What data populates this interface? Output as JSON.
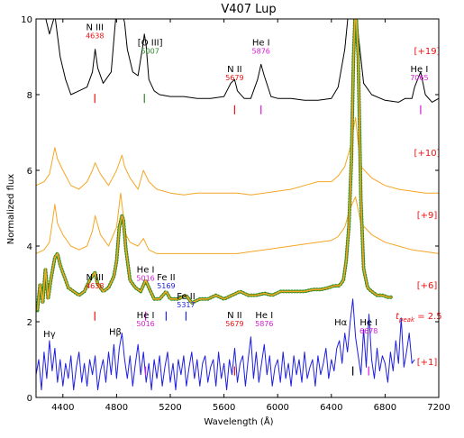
{
  "chart_data": {
    "type": "line",
    "title": "V407 Lup",
    "xlabel": "Wavelength (Å)",
    "ylabel": "Normalized flux",
    "xlim": [
      4200,
      7200
    ],
    "ylim": [
      0,
      10
    ],
    "xticks": [
      4400,
      4800,
      5200,
      5600,
      6000,
      6400,
      6800,
      7200
    ],
    "yticks": [
      0,
      2,
      4,
      6,
      8,
      10
    ],
    "grid": false,
    "legend": "none",
    "colors": {
      "black": "#000000",
      "orange": "#f5a623",
      "green": "#2e8b22",
      "blue": "#1f1fdf",
      "red": "#ee1111",
      "magenta": "#d81ad8",
      "darkgreen": "#2a8a2a"
    },
    "series": [
      {
        "label": "[+19]",
        "label_color": "red",
        "color": "black",
        "x": [
          4200,
          4260,
          4300,
          4340,
          4380,
          4420,
          4460,
          4520,
          4580,
          4620,
          4640,
          4660,
          4700,
          4760,
          4800,
          4820,
          4840,
          4860,
          4880,
          4920,
          4960,
          5000,
          5007,
          5020,
          5040,
          5080,
          5120,
          5200,
          5300,
          5400,
          5500,
          5600,
          5650,
          5679,
          5700,
          5750,
          5800,
          5850,
          5876,
          5900,
          5950,
          6000,
          6100,
          6200,
          6300,
          6400,
          6450,
          6500,
          6530,
          6560,
          6580,
          6600,
          6640,
          6700,
          6800,
          6900,
          6950,
          7000,
          7020,
          7065,
          7100,
          7150,
          7200
        ],
        "y": [
          10.5,
          10.2,
          9.6,
          10.1,
          9.0,
          8.4,
          8.0,
          8.1,
          8.2,
          8.6,
          9.2,
          8.7,
          8.3,
          8.6,
          10.3,
          10.6,
          10.2,
          9.9,
          9.2,
          8.6,
          8.5,
          9.4,
          9.6,
          9.3,
          8.4,
          8.1,
          8.0,
          7.95,
          7.95,
          7.9,
          7.9,
          7.95,
          8.3,
          8.4,
          8.1,
          7.9,
          7.9,
          8.4,
          8.8,
          8.5,
          7.95,
          7.9,
          7.9,
          7.85,
          7.85,
          7.9,
          8.2,
          9.2,
          10.3,
          10.8,
          10.5,
          9.6,
          8.3,
          8.0,
          7.85,
          7.8,
          7.9,
          7.9,
          8.2,
          8.6,
          8.0,
          7.8,
          7.9
        ]
      },
      {
        "label": "[+10]",
        "label_color": "red",
        "color": "orange",
        "x": [
          4200,
          4260,
          4300,
          4340,
          4360,
          4400,
          4460,
          4520,
          4580,
          4620,
          4640,
          4680,
          4740,
          4800,
          4840,
          4860,
          4900,
          4960,
          5000,
          5040,
          5100,
          5200,
          5300,
          5400,
          5500,
          5600,
          5700,
          5800,
          5900,
          6000,
          6100,
          6200,
          6300,
          6400,
          6450,
          6500,
          6540,
          6580,
          6600,
          6620,
          6700,
          6800,
          6900,
          7000,
          7100,
          7200
        ],
        "y": [
          5.6,
          5.7,
          5.9,
          6.6,
          6.3,
          6.0,
          5.6,
          5.5,
          5.7,
          6.0,
          6.2,
          5.9,
          5.6,
          6.0,
          6.4,
          6.1,
          5.8,
          5.5,
          6.0,
          5.7,
          5.5,
          5.4,
          5.35,
          5.4,
          5.4,
          5.4,
          5.4,
          5.35,
          5.4,
          5.45,
          5.5,
          5.6,
          5.7,
          5.7,
          5.85,
          6.1,
          6.6,
          7.4,
          6.7,
          6.1,
          5.8,
          5.6,
          5.5,
          5.45,
          5.4,
          5.4
        ]
      },
      {
        "label": "[+9]",
        "label_color": "red",
        "color": "orange",
        "x": [
          4200,
          4260,
          4300,
          4340,
          4360,
          4400,
          4460,
          4520,
          4580,
          4620,
          4640,
          4680,
          4740,
          4800,
          4830,
          4850,
          4870,
          4900,
          4960,
          5000,
          5040,
          5100,
          5200,
          5300,
          5400,
          5500,
          5600,
          5700,
          5800,
          5900,
          6000,
          6100,
          6200,
          6300,
          6400,
          6450,
          6500,
          6540,
          6580,
          6620,
          6700,
          6800,
          6900,
          7000,
          7100,
          7200
        ],
        "y": [
          3.8,
          3.9,
          4.1,
          5.1,
          4.6,
          4.3,
          4.0,
          3.9,
          4.0,
          4.4,
          4.8,
          4.3,
          4.0,
          4.5,
          5.4,
          4.8,
          4.3,
          4.1,
          4.0,
          4.2,
          3.9,
          3.8,
          3.8,
          3.8,
          3.8,
          3.8,
          3.8,
          3.8,
          3.85,
          3.9,
          3.95,
          4.0,
          4.05,
          4.1,
          4.15,
          4.25,
          4.5,
          5.0,
          5.3,
          4.6,
          4.3,
          4.1,
          4.0,
          3.9,
          3.85,
          3.8
        ]
      },
      {
        "label": "[+6]",
        "label_color": "red",
        "color": "orange",
        "marker_color": "green",
        "x": [
          4210,
          4230,
          4250,
          4270,
          4290,
          4310,
          4320,
          4340,
          4360,
          4380,
          4400,
          4440,
          4480,
          4520,
          4560,
          4600,
          4638,
          4660,
          4700,
          4740,
          4780,
          4800,
          4820,
          4840,
          4850,
          4870,
          4900,
          4940,
          4980,
          5016,
          5040,
          5080,
          5120,
          5169,
          5200,
          5260,
          5317,
          5360,
          5420,
          5480,
          5540,
          5600,
          5660,
          5720,
          5780,
          5840,
          5900,
          5960,
          6020,
          6080,
          6140,
          6200,
          6260,
          6320,
          6380,
          6420,
          6460,
          6490,
          6510,
          6530,
          6550,
          6565,
          6580,
          6600,
          6620,
          6640,
          6670,
          6700,
          6740,
          6780,
          6820,
          6850
        ],
        "y": [
          2.3,
          3.0,
          2.5,
          3.4,
          2.6,
          3.1,
          3.3,
          3.7,
          3.8,
          3.5,
          3.3,
          2.9,
          2.8,
          2.7,
          2.8,
          3.1,
          3.3,
          3.0,
          2.8,
          2.9,
          3.2,
          3.6,
          4.5,
          4.8,
          4.7,
          3.9,
          3.1,
          2.9,
          2.8,
          3.1,
          2.9,
          2.6,
          2.6,
          2.8,
          2.6,
          2.6,
          2.7,
          2.5,
          2.6,
          2.6,
          2.7,
          2.6,
          2.7,
          2.8,
          2.7,
          2.7,
          2.75,
          2.7,
          2.8,
          2.8,
          2.8,
          2.8,
          2.85,
          2.85,
          2.9,
          2.95,
          2.95,
          3.1,
          3.6,
          4.5,
          6.3,
          9.0,
          10.4,
          9.0,
          5.2,
          3.4,
          2.9,
          2.8,
          2.7,
          2.7,
          2.65,
          2.65
        ]
      },
      {
        "label": "[+1]",
        "label_color": "red",
        "color": "blue",
        "x": [
          4200,
          4220,
          4240,
          4260,
          4280,
          4300,
          4320,
          4340,
          4360,
          4380,
          4400,
          4420,
          4440,
          4460,
          4480,
          4500,
          4520,
          4540,
          4560,
          4580,
          4600,
          4620,
          4640,
          4660,
          4680,
          4700,
          4720,
          4740,
          4760,
          4780,
          4800,
          4820,
          4840,
          4860,
          4880,
          4900,
          4920,
          4940,
          4960,
          4980,
          5000,
          5020,
          5040,
          5060,
          5080,
          5100,
          5120,
          5140,
          5160,
          5180,
          5200,
          5220,
          5240,
          5260,
          5280,
          5300,
          5320,
          5340,
          5360,
          5380,
          5400,
          5420,
          5440,
          5460,
          5480,
          5500,
          5520,
          5540,
          5560,
          5580,
          5600,
          5620,
          5640,
          5660,
          5680,
          5700,
          5720,
          5740,
          5760,
          5780,
          5800,
          5820,
          5840,
          5860,
          5880,
          5900,
          5920,
          5940,
          5960,
          5980,
          6000,
          6020,
          6040,
          6060,
          6080,
          6100,
          6120,
          6140,
          6160,
          6180,
          6200,
          6220,
          6240,
          6260,
          6280,
          6300,
          6320,
          6340,
          6360,
          6380,
          6400,
          6420,
          6440,
          6460,
          6480,
          6500,
          6520,
          6540,
          6560,
          6580,
          6600,
          6620,
          6640,
          6660,
          6680,
          6700,
          6720,
          6740,
          6760,
          6780,
          6800,
          6820,
          6840,
          6860,
          6880,
          6900,
          6920,
          6940,
          6960,
          6980,
          7000,
          7020
        ],
        "y": [
          0.6,
          1.0,
          0.2,
          1.2,
          0.5,
          1.5,
          0.7,
          1.3,
          0.4,
          1.0,
          0.3,
          0.9,
          0.5,
          1.1,
          0.2,
          0.8,
          1.2,
          0.4,
          0.9,
          0.3,
          1.0,
          0.6,
          1.1,
          0.2,
          0.7,
          1.0,
          0.4,
          1.2,
          0.6,
          1.4,
          0.5,
          1.3,
          1.7,
          1.0,
          0.5,
          1.1,
          0.3,
          0.9,
          1.4,
          0.6,
          1.2,
          0.4,
          0.9,
          0.2,
          1.0,
          0.5,
          1.1,
          0.3,
          0.8,
          1.2,
          0.4,
          0.9,
          0.2,
          1.0,
          0.6,
          1.1,
          0.3,
          0.8,
          1.2,
          0.5,
          1.0,
          0.3,
          0.9,
          1.1,
          0.4,
          0.8,
          1.0,
          0.3,
          1.2,
          0.5,
          0.9,
          0.2,
          1.0,
          0.6,
          1.3,
          0.4,
          0.9,
          1.1,
          0.3,
          1.0,
          1.6,
          0.5,
          1.2,
          0.4,
          0.9,
          1.4,
          0.6,
          1.1,
          0.3,
          0.8,
          1.0,
          0.4,
          1.2,
          0.5,
          0.9,
          0.3,
          1.1,
          0.6,
          1.0,
          0.4,
          1.2,
          0.5,
          0.8,
          1.0,
          0.3,
          1.1,
          0.6,
          0.9,
          1.3,
          0.5,
          1.0,
          0.7,
          1.3,
          1.5,
          0.9,
          1.7,
          1.2,
          2.0,
          2.6,
          1.6,
          1.1,
          0.6,
          1.8,
          0.8,
          2.2,
          1.0,
          0.5,
          1.3,
          0.7,
          1.1,
          0.9,
          0.4,
          1.2,
          0.7,
          1.5,
          0.9,
          2.1,
          0.8,
          1.2,
          1.7,
          0.9,
          1.0
        ]
      }
    ],
    "annotations": [
      {
        "text": "N III",
        "sub": "4638",
        "sub_color": "red",
        "x": 4638,
        "y": 9.7
      },
      {
        "text": "[O III]",
        "sub": "5007",
        "sub_color": "darkgreen",
        "x": 5050,
        "y": 9.3
      },
      {
        "text": "N II",
        "sub": "5679",
        "sub_color": "red",
        "x": 5679,
        "y": 8.6
      },
      {
        "text": "He I",
        "sub": "5876",
        "sub_color": "magenta",
        "x": 5876,
        "y": 9.3
      },
      {
        "text": "He I",
        "sub": "7065",
        "sub_color": "magenta",
        "x": 7055,
        "y": 8.6
      },
      {
        "text": "N III",
        "sub": "4638",
        "sub_color": "red",
        "x": 4638,
        "y": 3.1
      },
      {
        "text": "He I",
        "sub": "5016",
        "sub_color": "magenta",
        "x": 5016,
        "y": 3.3
      },
      {
        "text": "Fe II",
        "sub": "5169",
        "sub_color": "blue",
        "x": 5169,
        "y": 3.1
      },
      {
        "text": "Fe II",
        "sub": "5317",
        "sub_color": "blue",
        "x": 5317,
        "y": 2.6
      },
      {
        "text": "He I",
        "sub": "5016",
        "sub_color": "magenta",
        "x": 5016,
        "y": 2.1
      },
      {
        "text": "N II",
        "sub": "5679",
        "sub_color": "red",
        "x": 5679,
        "y": 2.1
      },
      {
        "text": "He I",
        "sub": "5876",
        "sub_color": "magenta",
        "x": 5900,
        "y": 2.1
      },
      {
        "text": "He I",
        "sub": "6678",
        "sub_color": "magenta",
        "x": 6678,
        "y": 1.9
      },
      {
        "text": "Hγ",
        "sub": "",
        "x": 4300,
        "y": 1.6
      },
      {
        "text": "Hβ",
        "sub": "",
        "x": 4790,
        "y": 1.65
      },
      {
        "text": "Hα",
        "sub": "",
        "x": 6470,
        "y": 1.9
      }
    ],
    "line_markers": [
      {
        "x": 4638,
        "y": 7.9,
        "color": "red"
      },
      {
        "x": 5007,
        "y": 7.9,
        "color": "darkgreen"
      },
      {
        "x": 5679,
        "y": 7.6,
        "color": "red"
      },
      {
        "x": 5876,
        "y": 7.6,
        "color": "magenta"
      },
      {
        "x": 7065,
        "y": 7.6,
        "color": "magenta"
      },
      {
        "x": 4638,
        "y": 2.15,
        "color": "red"
      },
      {
        "x": 5016,
        "y": 2.15,
        "color": "magenta"
      },
      {
        "x": 5169,
        "y": 2.15,
        "color": "blue"
      },
      {
        "x": 5317,
        "y": 2.15,
        "color": "blue"
      },
      {
        "x": 5016,
        "y": 0.7,
        "color": "magenta"
      },
      {
        "x": 5679,
        "y": 0.7,
        "color": "red"
      },
      {
        "x": 6678,
        "y": 0.7,
        "color": "magenta"
      },
      {
        "x": 6560,
        "y": 0.7,
        "color": "black"
      }
    ],
    "tpeak": {
      "text": "t",
      "sub": "peak",
      "rest": "= 2.5",
      "color": "red"
    }
  }
}
